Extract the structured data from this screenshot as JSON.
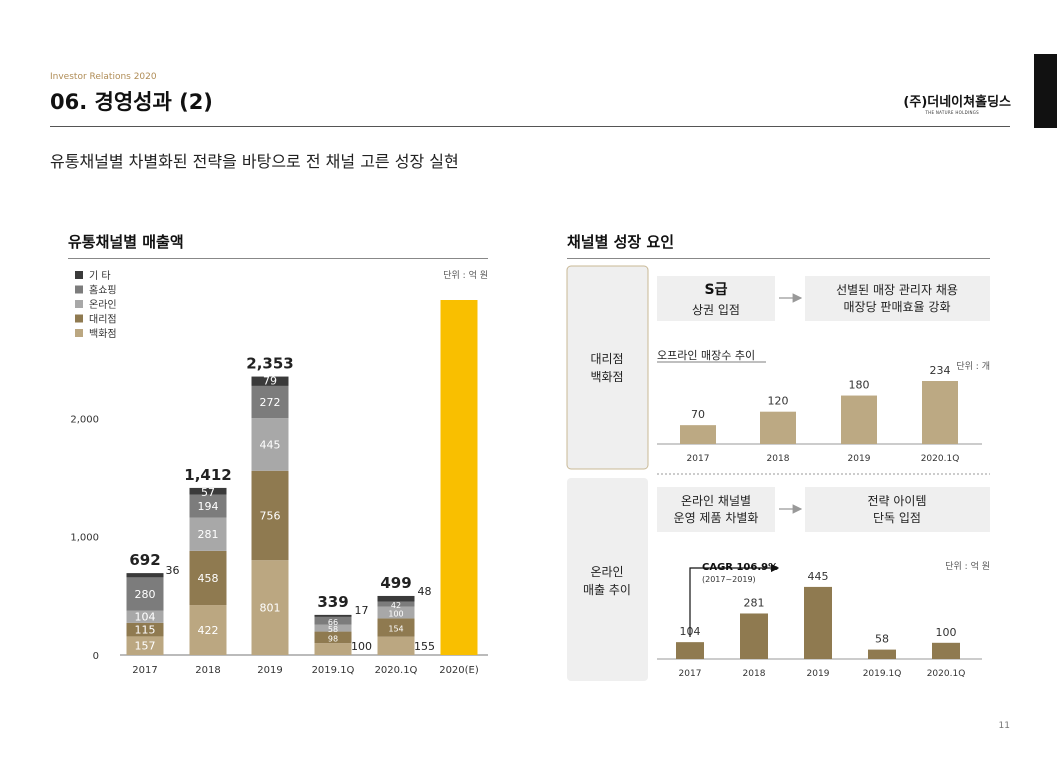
{
  "header": {
    "series": "Investor Relations 2020",
    "title": "06. 경영성과 (2)",
    "company": "(주)더네이쳐홀딩스",
    "company_sub": "THE NATURE HOLDINGS",
    "subtitle": "유통채널별 차별화된 전략을 바탕으로 전 채널 고른 성장 실현"
  },
  "left_section": {
    "title": "유통채널별 매출액",
    "unit": "단위 : 억 원"
  },
  "right_section": {
    "title": "채널별 성장 요인"
  },
  "offline": {
    "label_lines": [
      "대리점",
      "백화점"
    ],
    "box1_lines": [
      "S급",
      "상권 입점"
    ],
    "box2_lines": [
      "선별된 매장 관리자 채용",
      "매장당 판매효율 강화"
    ],
    "chart_title": "오프라인 매장수 추이",
    "unit": "단위 : 개"
  },
  "online": {
    "label_lines": [
      "온라인",
      "매출 추이"
    ],
    "box1_lines": [
      "온라인 채널별",
      "운영 제품 차별화"
    ],
    "box2_lines": [
      "전략 아이템",
      "단독 입점"
    ],
    "unit": "단위 : 억 원",
    "cagr_label": "CAGR 106.9%",
    "cagr_period": "(2017~2019)"
  },
  "colors": {
    "etc": "#3a3a3a",
    "homeshopping": "#7c7c7c",
    "online": "#a8a8a8",
    "agency": "#8f7a50",
    "department": "#bba781",
    "forecast": "#f9bf00",
    "store_bars": "#bca983",
    "online_bars": "#8f7a50",
    "panel": "#efefef",
    "panel_border": "#c8b896"
  },
  "chart_data": [
    {
      "type": "bar",
      "stacked": true,
      "categories": [
        "2017",
        "2018",
        "2019",
        "2019.1Q",
        "2020.1Q",
        "2020(E)"
      ],
      "series": [
        {
          "name": "백화점",
          "values": [
            157,
            422,
            801,
            100,
            155,
            null
          ]
        },
        {
          "name": "대리점",
          "values": [
            115,
            458,
            756,
            98,
            154,
            null
          ]
        },
        {
          "name": "온라인",
          "values": [
            104,
            281,
            445,
            58,
            100,
            null
          ]
        },
        {
          "name": "홈쇼핑",
          "values": [
            280,
            194,
            272,
            66,
            42,
            null
          ]
        },
        {
          "name": "기 타",
          "values": [
            36,
            57,
            79,
            17,
            48,
            null
          ]
        }
      ],
      "totals": [
        692,
        1412,
        2353,
        339,
        499,
        null
      ],
      "forecast": {
        "category": "2020(E)",
        "value": 3000
      },
      "yticks": [
        0,
        1000,
        2000
      ],
      "ytick_labels": [
        "0",
        "1,000",
        "2,000"
      ],
      "ylim": [
        0,
        3000
      ],
      "legend": [
        "기 타",
        "홈쇼핑",
        "온라인",
        "대리점",
        "백화점"
      ],
      "legend_position": "top-left"
    },
    {
      "type": "bar",
      "categories": [
        "2017",
        "2018",
        "2019",
        "2020.1Q"
      ],
      "values": [
        70,
        120,
        180,
        234
      ],
      "value_labels": [
        "70",
        "120",
        "180",
        "234"
      ],
      "ylim": [
        0,
        260
      ]
    },
    {
      "type": "bar",
      "categories": [
        "2017",
        "2018",
        "2019",
        "2019.1Q",
        "2020.1Q"
      ],
      "values": [
        104,
        281,
        445,
        58,
        100
      ],
      "value_labels": [
        "104",
        "281",
        "445",
        "58",
        "100"
      ],
      "ylim": [
        0,
        500
      ]
    }
  ],
  "footer": {
    "page_number": "11"
  }
}
